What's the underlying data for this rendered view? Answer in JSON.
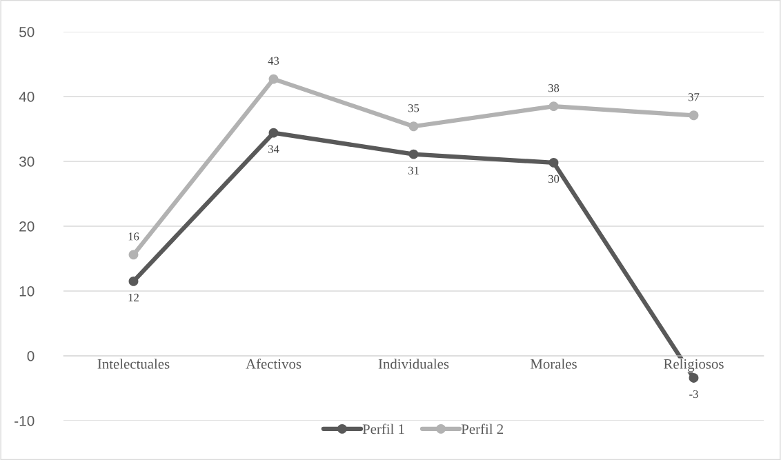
{
  "chart_data": {
    "type": "line",
    "categories": [
      "Intelectuales",
      "Afectivos",
      "Individuales",
      "Morales",
      "Religiosos"
    ],
    "series": [
      {
        "name": "Perfil 1",
        "color": "#595959",
        "values": [
          11.5,
          34.4,
          31.1,
          29.8,
          -3.4
        ],
        "value_labels": [
          "12",
          "34",
          "31",
          "30",
          "-3"
        ]
      },
      {
        "name": "Perfil 2",
        "color": "#b2b2b2",
        "values": [
          15.6,
          42.7,
          35.4,
          38.5,
          37.1
        ],
        "value_labels": [
          "16",
          "43",
          "35",
          "38",
          "37"
        ]
      }
    ],
    "ylim": [
      -10,
      50
    ],
    "yticks": [
      -10,
      0,
      10,
      20,
      30,
      40,
      50
    ],
    "grid": "y",
    "legend": "bottom",
    "marker": "circle",
    "line_style": "solid"
  }
}
